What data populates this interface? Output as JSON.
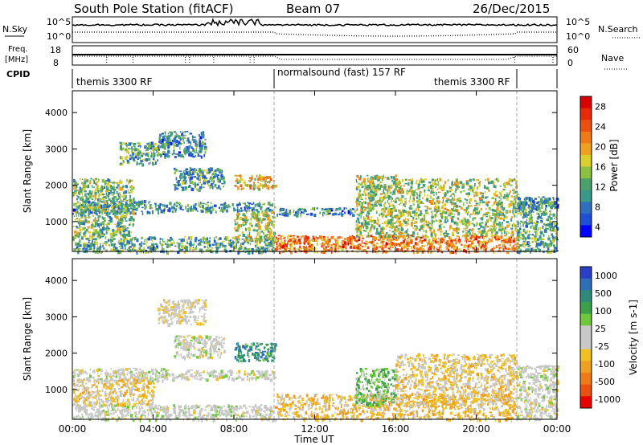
{
  "header": {
    "station": "South Pole Station (fitACF)",
    "beam": "Beam 07",
    "date": "26/Dec/2015"
  },
  "panels": {
    "nsky": {
      "label": "N.Sky",
      "right_label": "N.Search",
      "tick_top": "10^5",
      "tick_bottom": "10^0",
      "tick_top_right": "10^5",
      "tick_bottom_right": "10^0"
    },
    "freq": {
      "label_line1": "Freq.",
      "label_line2": "[MHz]",
      "right_label": "Nave",
      "left_ticks": [
        "18",
        "8"
      ],
      "right_ticks": [
        "60",
        "0"
      ]
    },
    "cpid": {
      "label": "CPID",
      "segments": [
        {
          "text": "themis 3300 RF",
          "start_h": 0,
          "end_h": 10
        },
        {
          "text": "normalsound (fast) 157 RF",
          "start_h": 10,
          "end_h": 22
        },
        {
          "text": "themis 3300 RF",
          "start_h": 22,
          "end_h": 24
        }
      ],
      "label_positions_h": [
        0,
        10,
        17.5
      ]
    }
  },
  "colorbars": {
    "power": {
      "label": "Power [dB]",
      "ticks": [
        "28",
        "24",
        "20",
        "16",
        "12",
        "8",
        "4"
      ],
      "colors": [
        "#0000ff",
        "#1f4fd6",
        "#2f6fbf",
        "#3a9a8a",
        "#4ca06a",
        "#8cc040",
        "#dbd02a",
        "#f0a020",
        "#f07a18",
        "#ec5010",
        "#e82a08",
        "#d80000"
      ]
    },
    "velocity": {
      "label": "Velocity [m s-1]",
      "ticks": [
        "1000",
        "500",
        "100",
        "25",
        "-25",
        "-100",
        "-500",
        "-1000"
      ],
      "colors": [
        "#2a3fc8",
        "#2f6fb8",
        "#2f8a7a",
        "#3aa04a",
        "#6ec83a",
        "#c8c8c8",
        "#c8c8c8",
        "#f0c020",
        "#f0a020",
        "#f07a18",
        "#ec5010",
        "#e80000"
      ]
    }
  },
  "axes": {
    "ylabel": "Slant Range [km]",
    "xlabel": "Time UT",
    "y_ticks": [
      "4000",
      "3000",
      "2000",
      "1000"
    ],
    "x_ticks": [
      "00:00",
      "04:00",
      "08:00",
      "12:00",
      "16:00",
      "20:00",
      "00:00"
    ]
  },
  "chart_data": [
    {
      "type": "heatmap",
      "title": "",
      "variable": "Power",
      "unit": "dB",
      "xlabel": "Time UT",
      "ylabel": "Slant Range [km]",
      "xlim": [
        0,
        24
      ],
      "ylim": [
        180,
        4600
      ],
      "colorbar_range": [
        0,
        30
      ],
      "regions": [
        {
          "t": [
            0.0,
            10.0
          ],
          "range_km": [
            180,
            600
          ],
          "power_db": 10
        },
        {
          "t": [
            0.0,
            4.5
          ],
          "range_km": [
            1250,
            1600
          ],
          "power_db": 8
        },
        {
          "t": [
            0.0,
            3.0
          ],
          "range_km": [
            600,
            2200
          ],
          "power_db": 12
        },
        {
          "t": [
            2.3,
            4.2
          ],
          "range_km": [
            2600,
            3200
          ],
          "power_db": 10
        },
        {
          "t": [
            4.2,
            6.6
          ],
          "range_km": [
            2800,
            3500
          ],
          "power_db": 8
        },
        {
          "t": [
            5.0,
            7.5
          ],
          "range_km": [
            1900,
            2500
          ],
          "power_db": 9
        },
        {
          "t": [
            4.5,
            10.0
          ],
          "range_km": [
            1300,
            1550
          ],
          "power_db": 8
        },
        {
          "t": [
            8.0,
            10.0
          ],
          "range_km": [
            1900,
            2300
          ],
          "power_db": 18
        },
        {
          "t": [
            8.0,
            10.0
          ],
          "range_km": [
            500,
            1300
          ],
          "power_db": 14
        },
        {
          "t": [
            10.0,
            22.0
          ],
          "range_km": [
            180,
            650
          ],
          "power_db": 22
        },
        {
          "t": [
            10.0,
            14.0
          ],
          "range_km": [
            1200,
            1400
          ],
          "power_db": 8
        },
        {
          "t": [
            14.0,
            16.0
          ],
          "range_km": [
            600,
            2300
          ],
          "power_db": 14
        },
        {
          "t": [
            16.0,
            22.0
          ],
          "range_km": [
            600,
            2200
          ],
          "power_db": 14
        },
        {
          "t": [
            22.0,
            24.0
          ],
          "range_km": [
            180,
            1600
          ],
          "power_db": 10
        },
        {
          "t": [
            22.0,
            24.0
          ],
          "range_km": [
            1400,
            1700
          ],
          "power_db": 8
        }
      ]
    },
    {
      "type": "heatmap",
      "title": "",
      "variable": "Velocity",
      "unit": "m s-1",
      "xlabel": "Time UT",
      "ylabel": "Slant Range [km]",
      "xlim": [
        0,
        24
      ],
      "ylim": [
        180,
        4600
      ],
      "colorbar_range": [
        -1000,
        1000
      ],
      "regions": [
        {
          "t": [
            0.0,
            10.0
          ],
          "range_km": [
            180,
            600
          ],
          "velocity": 20
        },
        {
          "t": [
            0.0,
            4.5
          ],
          "range_km": [
            1250,
            1600
          ],
          "velocity": 0
        },
        {
          "t": [
            0.0,
            4.0
          ],
          "range_km": [
            600,
            1300
          ],
          "velocity": -200
        },
        {
          "t": [
            4.2,
            6.6
          ],
          "range_km": [
            2800,
            3500
          ],
          "velocity": -80
        },
        {
          "t": [
            5.0,
            7.5
          ],
          "range_km": [
            1900,
            2500
          ],
          "velocity": 0
        },
        {
          "t": [
            4.5,
            10.0
          ],
          "range_km": [
            1300,
            1550
          ],
          "velocity": 0
        },
        {
          "t": [
            8.0,
            10.0
          ],
          "range_km": [
            1800,
            2300
          ],
          "velocity": 600
        },
        {
          "t": [
            10.0,
            22.0
          ],
          "range_km": [
            180,
            900
          ],
          "velocity": -300
        },
        {
          "t": [
            14.0,
            16.0
          ],
          "range_km": [
            600,
            1600
          ],
          "velocity": 300
        },
        {
          "t": [
            16.0,
            22.0
          ],
          "range_km": [
            600,
            2000
          ],
          "velocity": -200
        },
        {
          "t": [
            22.0,
            24.0
          ],
          "range_km": [
            180,
            1700
          ],
          "velocity": 0
        }
      ]
    }
  ]
}
